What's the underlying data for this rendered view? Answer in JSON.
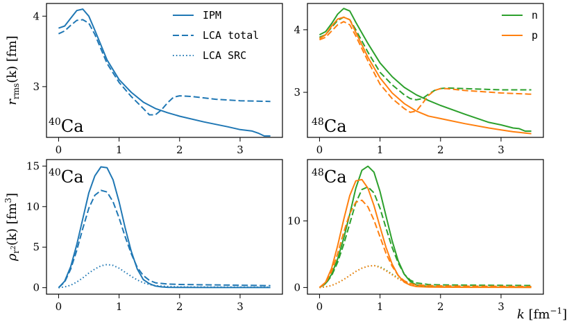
{
  "chart_data": [
    {
      "type": "line",
      "panel": "top-left",
      "nucleus": {
        "mass": "40",
        "symbol": "Ca"
      },
      "ylabel": {
        "main": "r",
        "sub": "rms",
        "arg": "(k) [fm]"
      },
      "xlim": [
        -0.2,
        3.7
      ],
      "ylim": [
        2.28,
        4.18
      ],
      "xticks": [
        0,
        1,
        2,
        3
      ],
      "yticks": [
        3,
        4
      ],
      "legend": {
        "placement": "top-right",
        "entries": [
          "IPM",
          "LCA total",
          "LCA SRC"
        ]
      },
      "series": [
        {
          "name": "IPM",
          "color": "#1f77b4",
          "dash": "solid",
          "x": [
            0.0,
            0.1,
            0.2,
            0.3,
            0.4,
            0.5,
            0.6,
            0.8,
            1.0,
            1.2,
            1.4,
            1.6,
            1.8,
            2.0,
            2.4,
            2.8,
            3.0,
            3.2,
            3.3,
            3.4,
            3.5
          ],
          "y": [
            3.83,
            3.86,
            3.97,
            4.08,
            4.1,
            4.0,
            3.8,
            3.38,
            3.1,
            2.92,
            2.78,
            2.69,
            2.63,
            2.58,
            2.5,
            2.43,
            2.39,
            2.37,
            2.34,
            2.3,
            2.3
          ]
        },
        {
          "name": "LCA total",
          "color": "#1f77b4",
          "dash": "dashed",
          "x": [
            0.0,
            0.1,
            0.2,
            0.3,
            0.4,
            0.5,
            0.6,
            0.8,
            1.0,
            1.2,
            1.4,
            1.5,
            1.6,
            1.7,
            1.8,
            1.9,
            2.0,
            2.2,
            2.6,
            3.0,
            3.5
          ],
          "y": [
            3.75,
            3.79,
            3.87,
            3.94,
            3.95,
            3.9,
            3.74,
            3.33,
            3.06,
            2.86,
            2.69,
            2.6,
            2.6,
            2.67,
            2.77,
            2.85,
            2.87,
            2.86,
            2.82,
            2.8,
            2.79
          ]
        },
        {
          "name": "LCA SRC",
          "color": "#1f77b4",
          "dash": "dotted",
          "x": [],
          "y": []
        }
      ]
    },
    {
      "type": "line",
      "panel": "top-right",
      "nucleus": {
        "mass": "48",
        "symbol": "Ca"
      },
      "xlim": [
        -0.2,
        3.7
      ],
      "ylim": [
        2.28,
        4.42
      ],
      "xticks": [
        0,
        1,
        2,
        3
      ],
      "yticks": [
        3,
        4
      ],
      "legend": {
        "placement": "top-right",
        "entries": [
          "n",
          "p"
        ]
      },
      "series": [
        {
          "name": "n",
          "color": "#2ca02c",
          "dash": "solid",
          "x": [
            0.0,
            0.1,
            0.2,
            0.3,
            0.4,
            0.5,
            0.6,
            0.8,
            1.0,
            1.2,
            1.4,
            1.6,
            1.8,
            2.0,
            2.4,
            2.8,
            3.0,
            3.2,
            3.3,
            3.4,
            3.5
          ],
          "y": [
            3.92,
            3.97,
            4.1,
            4.25,
            4.34,
            4.3,
            4.12,
            3.78,
            3.47,
            3.25,
            3.08,
            2.96,
            2.87,
            2.79,
            2.65,
            2.52,
            2.48,
            2.43,
            2.42,
            2.38,
            2.38
          ]
        },
        {
          "name": "n (LCA total)",
          "color": "#2ca02c",
          "dash": "dashed",
          "x": [
            0.0,
            0.1,
            0.2,
            0.3,
            0.4,
            0.5,
            0.6,
            0.8,
            1.0,
            1.2,
            1.4,
            1.5,
            1.6,
            1.7,
            1.8,
            1.9,
            2.0,
            2.1,
            2.4,
            3.0,
            3.5
          ],
          "y": [
            3.88,
            3.92,
            4.04,
            4.15,
            4.2,
            4.16,
            4.0,
            3.64,
            3.32,
            3.12,
            2.96,
            2.9,
            2.88,
            2.9,
            2.97,
            3.03,
            3.06,
            3.07,
            3.06,
            3.04,
            3.04
          ]
        },
        {
          "name": "p",
          "color": "#ff7f0e",
          "dash": "solid",
          "x": [
            0.0,
            0.1,
            0.2,
            0.3,
            0.4,
            0.5,
            0.6,
            0.8,
            1.0,
            1.2,
            1.4,
            1.6,
            1.8,
            2.0,
            2.4,
            2.8,
            3.0,
            3.2,
            3.3,
            3.4,
            3.5
          ],
          "y": [
            3.86,
            3.92,
            4.06,
            4.17,
            4.2,
            4.16,
            3.96,
            3.56,
            3.23,
            2.99,
            2.82,
            2.7,
            2.62,
            2.58,
            2.5,
            2.43,
            2.4,
            2.37,
            2.36,
            2.35,
            2.34
          ]
        },
        {
          "name": "p (LCA total)",
          "color": "#ff7f0e",
          "dash": "dashed",
          "x": [
            0.0,
            0.1,
            0.2,
            0.3,
            0.4,
            0.5,
            0.6,
            0.8,
            1.0,
            1.2,
            1.4,
            1.5,
            1.6,
            1.7,
            1.8,
            1.9,
            2.0,
            2.1,
            2.4,
            3.0,
            3.5
          ],
          "y": [
            3.84,
            3.88,
            3.98,
            4.08,
            4.13,
            4.08,
            3.9,
            3.5,
            3.13,
            2.9,
            2.74,
            2.68,
            2.7,
            2.82,
            2.95,
            3.03,
            3.06,
            3.06,
            3.03,
            2.99,
            2.97
          ]
        }
      ]
    },
    {
      "type": "line",
      "panel": "bottom-left",
      "nucleus": {
        "mass": "40",
        "symbol": "Ca"
      },
      "ylabel": {
        "main": "ρ",
        "sub": "r",
        "subsup": "2",
        "arg": "(k) [fm",
        "argsup": "3",
        "close": "]"
      },
      "xlim": [
        -0.2,
        3.7
      ],
      "ylim": [
        -0.8,
        15.8
      ],
      "xticks": [
        0,
        1,
        2,
        3
      ],
      "yticks": [
        0,
        5,
        10,
        15
      ],
      "series": [
        {
          "name": "IPM",
          "color": "#1f77b4",
          "dash": "solid",
          "x": [
            0.0,
            0.1,
            0.2,
            0.3,
            0.4,
            0.5,
            0.6,
            0.7,
            0.8,
            0.9,
            1.0,
            1.1,
            1.2,
            1.3,
            1.4,
            1.5,
            1.6,
            1.7,
            1.8,
            2.0,
            2.5,
            3.0,
            3.5
          ],
          "y": [
            0.0,
            0.8,
            2.6,
            5.3,
            8.5,
            11.7,
            13.8,
            14.9,
            14.8,
            13.3,
            10.6,
            7.4,
            4.5,
            2.3,
            1.0,
            0.5,
            0.2,
            0.1,
            0.05,
            0.03,
            0.02,
            0.02,
            0.02
          ]
        },
        {
          "name": "LCA total",
          "color": "#1f77b4",
          "dash": "dashed",
          "x": [
            0.0,
            0.1,
            0.2,
            0.3,
            0.4,
            0.5,
            0.6,
            0.7,
            0.8,
            0.9,
            1.0,
            1.1,
            1.2,
            1.3,
            1.4,
            1.5,
            1.6,
            1.8,
            2.0,
            2.5,
            3.0,
            3.5
          ],
          "y": [
            0.0,
            0.7,
            2.3,
            4.6,
            7.3,
            9.8,
            11.4,
            12.0,
            11.8,
            10.6,
            8.6,
            6.3,
            4.2,
            2.5,
            1.5,
            0.9,
            0.6,
            0.45,
            0.4,
            0.35,
            0.3,
            0.25
          ]
        },
        {
          "name": "LCA SRC",
          "color": "#1f77b4",
          "dash": "dotted",
          "x": [
            0.0,
            0.1,
            0.2,
            0.3,
            0.4,
            0.5,
            0.6,
            0.7,
            0.8,
            0.9,
            1.0,
            1.1,
            1.2,
            1.3,
            1.4,
            1.5,
            1.6,
            1.8,
            2.0,
            2.5,
            3.0,
            3.5
          ],
          "y": [
            0.0,
            0.1,
            0.3,
            0.7,
            1.2,
            1.8,
            2.3,
            2.7,
            2.85,
            2.75,
            2.4,
            1.9,
            1.4,
            0.95,
            0.6,
            0.4,
            0.25,
            0.15,
            0.1,
            0.08,
            0.07,
            0.06
          ]
        }
      ]
    },
    {
      "type": "line",
      "panel": "bottom-right",
      "nucleus": {
        "mass": "48",
        "symbol": "Ca"
      },
      "xlabel": {
        "main": "k",
        "unit": "[fm",
        "unitsup": "−1",
        "close": "]"
      },
      "xlim": [
        -0.2,
        3.7
      ],
      "ylim": [
        -1.0,
        19.2
      ],
      "xticks": [
        0,
        1,
        2,
        3
      ],
      "yticks": [
        0,
        10
      ],
      "series": [
        {
          "name": "n IPM",
          "color": "#2ca02c",
          "dash": "solid",
          "x": [
            0.0,
            0.1,
            0.2,
            0.3,
            0.4,
            0.5,
            0.6,
            0.7,
            0.8,
            0.9,
            1.0,
            1.1,
            1.2,
            1.3,
            1.4,
            1.5,
            1.6,
            1.8,
            2.0,
            2.5,
            3.0,
            3.5
          ],
          "y": [
            0.0,
            0.6,
            2.0,
            4.3,
            7.4,
            11.0,
            14.9,
            17.6,
            18.2,
            17.3,
            14.4,
            10.7,
            7.0,
            4.0,
            2.0,
            0.9,
            0.4,
            0.15,
            0.08,
            0.05,
            0.04,
            0.03
          ]
        },
        {
          "name": "n LCA total",
          "color": "#2ca02c",
          "dash": "dashed",
          "x": [
            0.0,
            0.1,
            0.2,
            0.3,
            0.4,
            0.5,
            0.6,
            0.7,
            0.8,
            0.9,
            1.0,
            1.1,
            1.2,
            1.3,
            1.4,
            1.5,
            1.6,
            1.8,
            2.0,
            2.5,
            3.0,
            3.5
          ],
          "y": [
            0.0,
            0.55,
            1.8,
            3.8,
            6.5,
            9.6,
            12.7,
            14.7,
            15.1,
            14.2,
            11.9,
            8.9,
            6.0,
            3.7,
            2.0,
            1.1,
            0.7,
            0.45,
            0.4,
            0.35,
            0.32,
            0.3
          ]
        },
        {
          "name": "n LCA SRC",
          "color": "#2ca02c",
          "dash": "dotted",
          "x": [
            0.0,
            0.1,
            0.2,
            0.3,
            0.4,
            0.5,
            0.6,
            0.7,
            0.8,
            0.9,
            1.0,
            1.1,
            1.2,
            1.3,
            1.4,
            1.5,
            1.6,
            1.8,
            2.0,
            2.5,
            3.0,
            3.5
          ],
          "y": [
            0.0,
            0.1,
            0.3,
            0.7,
            1.2,
            1.8,
            2.4,
            2.9,
            3.2,
            3.3,
            3.1,
            2.6,
            2.0,
            1.4,
            0.9,
            0.6,
            0.35,
            0.2,
            0.12,
            0.08,
            0.06,
            0.05
          ]
        },
        {
          "name": "p IPM",
          "color": "#ff7f0e",
          "dash": "solid",
          "x": [
            0.0,
            0.1,
            0.2,
            0.3,
            0.4,
            0.5,
            0.6,
            0.7,
            0.8,
            0.9,
            1.0,
            1.1,
            1.2,
            1.3,
            1.4,
            1.5,
            1.6,
            1.8,
            2.0,
            2.5,
            3.0,
            3.5
          ],
          "y": [
            0.0,
            0.8,
            2.9,
            6.3,
            10.2,
            13.8,
            16.0,
            16.2,
            14.9,
            12.3,
            9.1,
            6.0,
            3.5,
            1.8,
            0.8,
            0.35,
            0.15,
            0.07,
            0.05,
            0.03,
            0.03,
            0.02
          ]
        },
        {
          "name": "p LCA total",
          "color": "#ff7f0e",
          "dash": "dashed",
          "x": [
            0.0,
            0.1,
            0.2,
            0.3,
            0.4,
            0.5,
            0.6,
            0.7,
            0.8,
            0.9,
            1.0,
            1.1,
            1.2,
            1.3,
            1.4,
            1.5,
            1.6,
            1.8,
            2.0,
            2.5,
            3.0,
            3.5
          ],
          "y": [
            0.0,
            0.7,
            2.4,
            5.1,
            8.3,
            11.1,
            12.8,
            13.1,
            12.1,
            10.1,
            7.6,
            5.1,
            3.2,
            1.8,
            1.0,
            0.6,
            0.4,
            0.3,
            0.25,
            0.2,
            0.18,
            0.15
          ]
        },
        {
          "name": "p LCA SRC",
          "color": "#ff7f0e",
          "dash": "dotted",
          "x": [
            0.0,
            0.1,
            0.2,
            0.3,
            0.4,
            0.5,
            0.6,
            0.7,
            0.8,
            0.9,
            1.0,
            1.1,
            1.2,
            1.3,
            1.4,
            1.5,
            1.6,
            1.8,
            2.0,
            2.5,
            3.0,
            3.5
          ],
          "y": [
            0.0,
            0.1,
            0.3,
            0.7,
            1.2,
            1.8,
            2.4,
            2.9,
            3.2,
            3.3,
            3.0,
            2.5,
            1.9,
            1.3,
            0.85,
            0.55,
            0.32,
            0.18,
            0.1,
            0.07,
            0.05,
            0.04
          ]
        }
      ]
    }
  ]
}
